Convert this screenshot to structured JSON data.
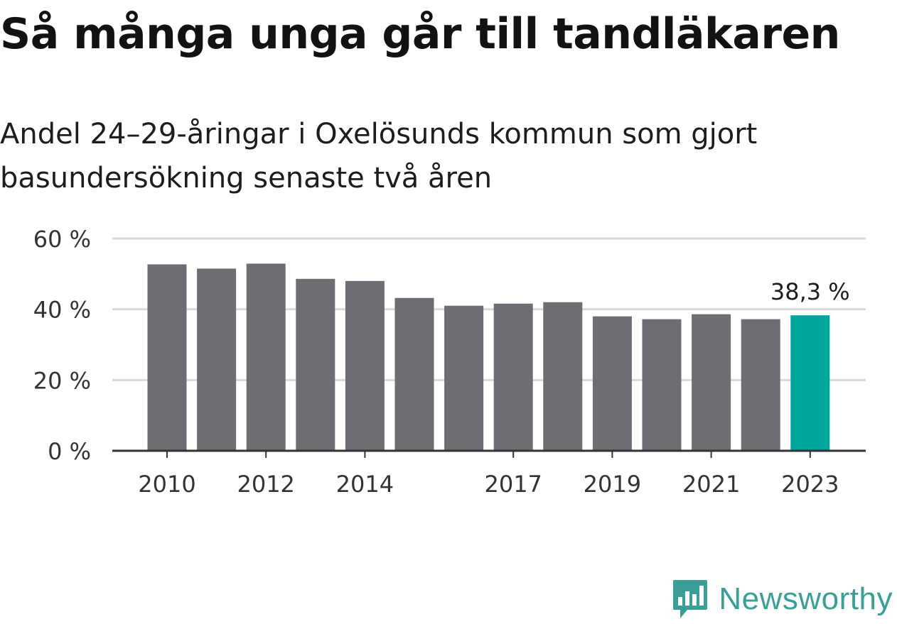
{
  "title": "Så många unga går till tandläkaren",
  "subtitle": "Andel 24–29-åringar i Oxelösunds kommun som gjort basundersökning senaste två åren",
  "brand": {
    "name": "Newsworthy",
    "icon": "newsworthy-logo-icon"
  },
  "colors": {
    "bar": "#6e6d74",
    "highlight": "#00a59b",
    "grid": "#d9d9d9",
    "axis": "#333333",
    "brand": "#3aa097"
  },
  "chart_data": {
    "type": "bar",
    "categories": [
      "2010",
      "2011",
      "2012",
      "2013",
      "2014",
      "2015",
      "2016",
      "2017",
      "2018",
      "2019",
      "2020",
      "2021",
      "2022",
      "2023"
    ],
    "values": [
      52.7,
      51.5,
      52.9,
      48.6,
      48.0,
      43.2,
      41.0,
      41.6,
      42.0,
      38.0,
      37.2,
      38.6,
      37.2,
      38.3
    ],
    "highlight_index": 13,
    "value_labels": [
      {
        "index": 13,
        "text": "38,3 %"
      }
    ],
    "x_tick_labels": [
      {
        "index": 0,
        "text": "2010"
      },
      {
        "index": 2,
        "text": "2012"
      },
      {
        "index": 4,
        "text": "2014"
      },
      {
        "index": 7,
        "text": "2017"
      },
      {
        "index": 9,
        "text": "2019"
      },
      {
        "index": 11,
        "text": "2021"
      },
      {
        "index": 13,
        "text": "2023"
      }
    ],
    "y_ticks": [
      {
        "value": 0,
        "label": "0 %"
      },
      {
        "value": 20,
        "label": "20 %"
      },
      {
        "value": 40,
        "label": "40 %"
      },
      {
        "value": 60,
        "label": "60 %"
      }
    ],
    "ylim": [
      0,
      60
    ],
    "grid": true,
    "xlabel": "",
    "ylabel": ""
  }
}
